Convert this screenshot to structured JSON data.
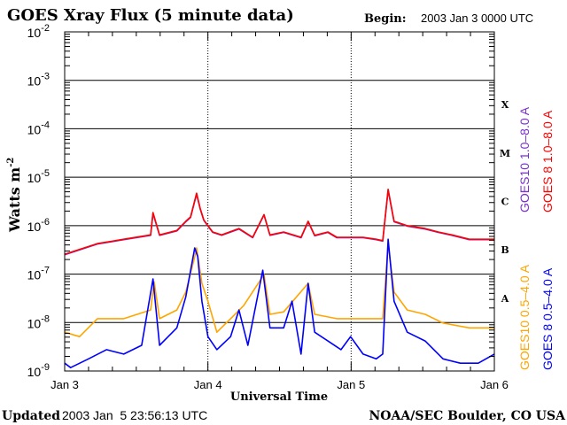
{
  "chart_data": {
    "type": "line",
    "title": "GOES Xray Flux (5 minute data)",
    "begin_label": "Begin:",
    "begin_value": "2003 Jan 3 0000 UTC",
    "xlabel": "Universal Time",
    "ylabel": "Watts m",
    "ylabel_exp": "-2",
    "x_unit": "hours since 2003 Jan 3 0000 UTC",
    "xlim": [
      0,
      72
    ],
    "ylim_log10": [
      -9,
      -2
    ],
    "y_scale": "log",
    "x_ticks": [
      {
        "hour": 0,
        "label": "Jan 3"
      },
      {
        "hour": 24,
        "label": "Jan 4"
      },
      {
        "hour": 48,
        "label": "Jan 5"
      },
      {
        "hour": 72,
        "label": "Jan 6"
      }
    ],
    "y_ticks": [
      {
        "base": "10",
        "exp": "-2"
      },
      {
        "base": "10",
        "exp": "-3"
      },
      {
        "base": "10",
        "exp": "-4"
      },
      {
        "base": "10",
        "exp": "-5"
      },
      {
        "base": "10",
        "exp": "-6"
      },
      {
        "base": "10",
        "exp": "-7"
      },
      {
        "base": "10",
        "exp": "-8"
      },
      {
        "base": "10",
        "exp": "-9"
      }
    ],
    "flare_classes": [
      {
        "label": "X",
        "log10": -3.5
      },
      {
        "label": "M",
        "log10": -4.5
      },
      {
        "label": "C",
        "log10": -5.5
      },
      {
        "label": "B",
        "log10": -6.5
      },
      {
        "label": "A",
        "log10": -7.5
      }
    ],
    "grid": true,
    "legend_placement": "right, vertical",
    "series": [
      {
        "name": "GOES10 1.0-8.0 A",
        "color": "#7b2fd0",
        "points": [
          [
            0,
            -6.6
          ],
          [
            5.5,
            -6.38
          ],
          [
            9.9,
            -6.29
          ],
          [
            14.4,
            -6.2
          ],
          [
            14.8,
            -5.75
          ],
          [
            15.9,
            -6.2
          ],
          [
            18.8,
            -6.11
          ],
          [
            20.3,
            -5.92
          ],
          [
            21.1,
            -5.83
          ],
          [
            22.1,
            -5.35
          ],
          [
            22.7,
            -5.65
          ],
          [
            23.3,
            -5.89
          ],
          [
            24,
            -6.01
          ],
          [
            24.8,
            -6.14
          ],
          [
            26.3,
            -6.2
          ],
          [
            29.2,
            -6.07
          ],
          [
            31.5,
            -6.25
          ],
          [
            33.4,
            -5.78
          ],
          [
            34.4,
            -6.2
          ],
          [
            36.7,
            -6.14
          ],
          [
            39.6,
            -6.25
          ],
          [
            40.8,
            -5.92
          ],
          [
            41.9,
            -6.21
          ],
          [
            44.1,
            -6.14
          ],
          [
            45.6,
            -6.25
          ],
          [
            47.9,
            -6.25
          ],
          [
            50,
            -6.25
          ],
          [
            52.2,
            -6.29
          ],
          [
            53.3,
            -6.32
          ],
          [
            54.2,
            -5.27
          ],
          [
            55.2,
            -5.92
          ],
          [
            57.4,
            -6.01
          ],
          [
            60.4,
            -6.07
          ],
          [
            62.6,
            -6.14
          ],
          [
            64.9,
            -6.2
          ],
          [
            67.8,
            -6.29
          ],
          [
            72,
            -6.29
          ]
        ]
      },
      {
        "name": "GOES 8 1.0-8.0 A",
        "color": "#ff0000",
        "points": [
          [
            0,
            -6.59
          ],
          [
            5.5,
            -6.37
          ],
          [
            9.9,
            -6.28
          ],
          [
            14.4,
            -6.19
          ],
          [
            14.8,
            -5.73
          ],
          [
            15.9,
            -6.19
          ],
          [
            18.8,
            -6.1
          ],
          [
            20.3,
            -5.91
          ],
          [
            21.1,
            -5.82
          ],
          [
            22.1,
            -5.33
          ],
          [
            22.7,
            -5.64
          ],
          [
            23.3,
            -5.88
          ],
          [
            24,
            -6.0
          ],
          [
            24.8,
            -6.13
          ],
          [
            26.3,
            -6.19
          ],
          [
            29.2,
            -6.06
          ],
          [
            31.5,
            -6.24
          ],
          [
            33.4,
            -5.77
          ],
          [
            34.4,
            -6.19
          ],
          [
            36.7,
            -6.13
          ],
          [
            39.6,
            -6.24
          ],
          [
            40.8,
            -5.91
          ],
          [
            41.9,
            -6.2
          ],
          [
            44.1,
            -6.13
          ],
          [
            45.6,
            -6.24
          ],
          [
            47.9,
            -6.24
          ],
          [
            50,
            -6.24
          ],
          [
            52.2,
            -6.28
          ],
          [
            53.3,
            -6.31
          ],
          [
            54.2,
            -5.25
          ],
          [
            55.2,
            -5.91
          ],
          [
            57.4,
            -6.0
          ],
          [
            60.4,
            -6.06
          ],
          [
            62.6,
            -6.13
          ],
          [
            64.9,
            -6.19
          ],
          [
            67.8,
            -6.28
          ],
          [
            72,
            -6.28
          ]
        ]
      },
      {
        "name": "GOES10 0.5-4.0 A",
        "color": "#ffa500",
        "points": [
          [
            0,
            -8.2
          ],
          [
            2.5,
            -8.29
          ],
          [
            5.5,
            -7.92
          ],
          [
            9.9,
            -7.92
          ],
          [
            14.4,
            -7.74
          ],
          [
            15,
            -7.16
          ],
          [
            15.9,
            -7.92
          ],
          [
            18.8,
            -7.74
          ],
          [
            20.3,
            -7.37
          ],
          [
            21.8,
            -6.64
          ],
          [
            22.1,
            -6.46
          ],
          [
            23,
            -7.19
          ],
          [
            24,
            -7.56
          ],
          [
            25.5,
            -8.2
          ],
          [
            27.8,
            -7.92
          ],
          [
            30,
            -7.65
          ],
          [
            33.4,
            -7.01
          ],
          [
            34.4,
            -7.83
          ],
          [
            36.7,
            -7.78
          ],
          [
            40.8,
            -7.19
          ],
          [
            41.9,
            -7.83
          ],
          [
            45.6,
            -7.92
          ],
          [
            47.9,
            -7.92
          ],
          [
            51.5,
            -7.92
          ],
          [
            53.3,
            -7.92
          ],
          [
            54.2,
            -6.37
          ],
          [
            55.2,
            -7.37
          ],
          [
            57.4,
            -7.74
          ],
          [
            60.4,
            -7.83
          ],
          [
            63.4,
            -8.01
          ],
          [
            67.8,
            -8.11
          ],
          [
            72,
            -8.11
          ]
        ]
      },
      {
        "name": "GOES 8 0.5-4.0 A",
        "color": "#0000ff",
        "points": [
          [
            0,
            -8.84
          ],
          [
            1,
            -8.93
          ],
          [
            4,
            -8.75
          ],
          [
            7,
            -8.56
          ],
          [
            9.9,
            -8.65
          ],
          [
            12.9,
            -8.47
          ],
          [
            14.8,
            -7.1
          ],
          [
            15.9,
            -8.47
          ],
          [
            18.8,
            -8.11
          ],
          [
            20.3,
            -7.47
          ],
          [
            21.8,
            -6.46
          ],
          [
            22.3,
            -6.64
          ],
          [
            23,
            -7.56
          ],
          [
            24,
            -8.29
          ],
          [
            25.5,
            -8.56
          ],
          [
            27.8,
            -8.29
          ],
          [
            29.2,
            -7.74
          ],
          [
            30.7,
            -8.47
          ],
          [
            33.2,
            -6.92
          ],
          [
            34.4,
            -8.11
          ],
          [
            36.7,
            -8.11
          ],
          [
            38.1,
            -7.56
          ],
          [
            39.6,
            -8.65
          ],
          [
            40.8,
            -7.19
          ],
          [
            41.9,
            -8.2
          ],
          [
            44.1,
            -8.38
          ],
          [
            46.3,
            -8.56
          ],
          [
            47.9,
            -8.29
          ],
          [
            50,
            -8.65
          ],
          [
            52.2,
            -8.75
          ],
          [
            53.3,
            -8.65
          ],
          [
            54.2,
            -6.28
          ],
          [
            55.2,
            -7.56
          ],
          [
            57.4,
            -8.2
          ],
          [
            60.4,
            -8.38
          ],
          [
            63.4,
            -8.75
          ],
          [
            66.3,
            -8.84
          ],
          [
            69.3,
            -8.84
          ],
          [
            72,
            -8.65
          ]
        ]
      }
    ],
    "legend": [
      {
        "series": 0,
        "text": "GOES10 1.0–8.0 A"
      },
      {
        "series": 1,
        "text": "GOES 8 1.0–8.0 A"
      },
      {
        "series": 2,
        "text": "GOES10 0.5–4.0 A"
      },
      {
        "series": 3,
        "text": "GOES 8 0.5–4.0 A"
      }
    ]
  },
  "footer": {
    "updated_label": "Updated",
    "updated_value": "2003 Jan  5 23:56:13 UTC",
    "credit": "NOAA/SEC Boulder, CO USA"
  }
}
